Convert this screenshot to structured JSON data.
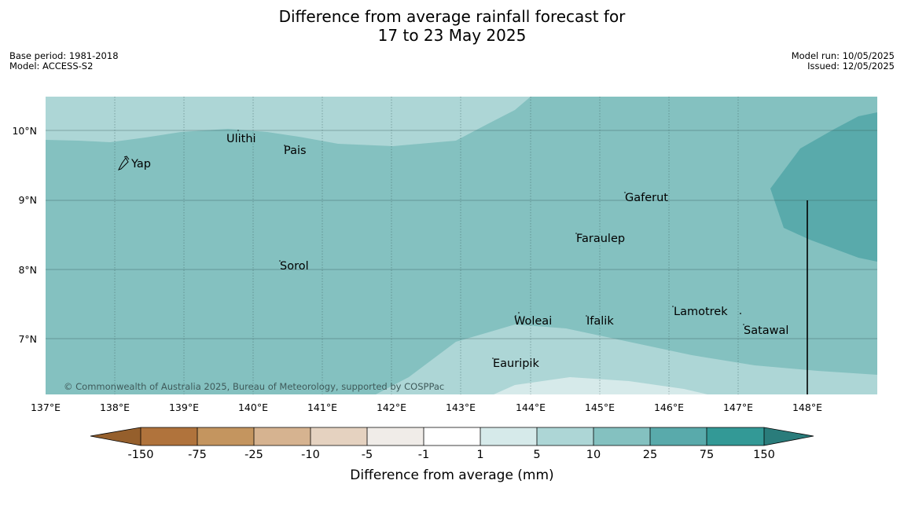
{
  "header": {
    "title_line1": "Difference from average rainfall forecast for",
    "title_line2": "17 to 23 May 2025",
    "base_period": "Base period: 1981-2018",
    "model": "Model: ACCESS-S2",
    "model_run": "Model run: 10/05/2025",
    "issued": "Issued: 12/05/2025"
  },
  "map": {
    "lat_labels": [
      "10°N",
      "9°N",
      "8°N",
      "7°N"
    ],
    "lon_labels": [
      "137°E",
      "138°E",
      "139°E",
      "140°E",
      "141°E",
      "142°E",
      "143°E",
      "144°E",
      "145°E",
      "146°E",
      "147°E",
      "148°E"
    ],
    "places": [
      "Ulithi",
      "Pais",
      "Yap",
      "Gaferut",
      "Faraulep",
      "Sorol",
      "Lamotrek",
      "Woleai",
      "Ifalik",
      "Satawal",
      "Eauripik"
    ],
    "copyright": "© Commonwealth of Australia 2025, Bureau of Meteorology, supported by COSPPac"
  },
  "legend": {
    "ticks": [
      "-150",
      "-75",
      "-25",
      "-10",
      "-5",
      "-1",
      "1",
      "5",
      "10",
      "25",
      "75",
      "150"
    ],
    "title": "Difference from average (mm)",
    "colors": {
      "lt_m150": "#955f2c",
      "m150_m75": "#b0733c",
      "m75_m25": "#c4955f",
      "m25_m10": "#d6b390",
      "m10_m5": "#e5d2c0",
      "m5_m1": "#f0ece8",
      "m1_1": "#ffffff",
      "1_5": "#d6eaea",
      "5_10": "#add6d6",
      "10_25": "#84c1c0",
      "25_75": "#59aaab",
      "75_150": "#339996",
      "gt_150": "#2a7c7b"
    }
  }
}
